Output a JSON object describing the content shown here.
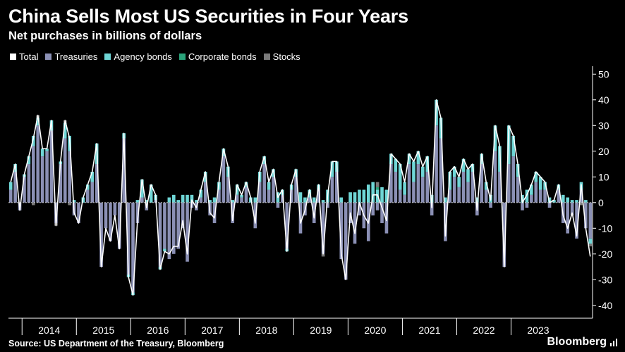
{
  "header": {
    "title": "China Sells Most US Securities in Four Years",
    "subtitle": "Net purchases in billions of dollars"
  },
  "footer": {
    "source": "Source: US Department of the Treasury, Bloomberg",
    "brand": "Bloomberg"
  },
  "colors": {
    "background": "#000000",
    "total": "#ffffff",
    "treasuries": "#8b90b5",
    "agency": "#6fd6d6",
    "corporate": "#2aa37a",
    "stocks": "#7a7a7a",
    "axis": "#ffffff"
  },
  "chart_data": {
    "type": "bar",
    "stacked": true,
    "title": "China Sells Most US Securities in Four Years",
    "subtitle": "Net purchases in billions of dollars",
    "ylim": [
      -45,
      52
    ],
    "yticks": [
      50,
      40,
      30,
      20,
      10,
      0,
      -10,
      -20,
      -30,
      -40
    ],
    "y_axis_side": "right",
    "x_start": "2013-10",
    "year_labels": [
      "2014",
      "2015",
      "2016",
      "2017",
      "2018",
      "2019",
      "2020",
      "2021",
      "2022",
      "2023"
    ],
    "legend": [
      "Total",
      "Treasuries",
      "Agency bonds",
      "Corporate bonds",
      "Stocks"
    ],
    "legend_placement": "top-left",
    "grid": false,
    "series": [
      {
        "name": "Treasuries",
        "values": [
          5,
          12,
          -3,
          10,
          15,
          22,
          30,
          18,
          20,
          28,
          -8,
          15,
          25,
          20,
          -5,
          -8,
          0,
          5,
          8,
          15,
          -25,
          -10,
          -15,
          -5,
          -18,
          25,
          -28,
          -35,
          -8,
          2,
          -3,
          0,
          1,
          -25,
          -18,
          -22,
          -20,
          -18,
          -10,
          -23,
          -2,
          -3,
          2,
          8,
          -5,
          -8,
          5,
          18,
          10,
          -8,
          3,
          2,
          6,
          0,
          -10,
          8,
          15,
          5,
          10,
          -2,
          3,
          -18,
          5,
          10,
          -12,
          -5,
          2,
          -8,
          5,
          -20,
          -2,
          10,
          12,
          -22,
          -30,
          -8,
          -16,
          -5,
          -10,
          -15,
          -5,
          -3,
          -8,
          -12,
          15,
          12,
          5,
          3,
          15,
          8,
          15,
          10,
          12,
          -5,
          30,
          25,
          -15,
          5,
          10,
          6,
          12,
          8,
          12,
          -5,
          15,
          5,
          -2,
          20,
          12,
          -25,
          15,
          18,
          10,
          -3,
          -2,
          3,
          8,
          5,
          5,
          -2,
          0,
          5,
          -8,
          -12,
          -5,
          -14,
          5,
          -10,
          -14
        ]
      },
      {
        "name": "Agency bonds",
        "values": [
          3,
          3,
          0,
          1,
          3,
          4,
          3,
          3,
          1,
          4,
          0,
          1,
          6,
          6,
          1,
          0,
          2,
          2,
          4,
          8,
          0,
          0,
          0,
          0,
          0,
          2,
          -1,
          -1,
          1,
          7,
          1,
          7,
          2,
          -1,
          -1,
          2,
          3,
          1,
          3,
          3,
          3,
          1,
          3,
          4,
          1,
          2,
          3,
          3,
          4,
          1,
          4,
          1,
          2,
          2,
          2,
          4,
          3,
          3,
          3,
          4,
          2,
          -1,
          2,
          3,
          4,
          2,
          3,
          2,
          2,
          1,
          5,
          6,
          4,
          2,
          0,
          4,
          4,
          5,
          5,
          7,
          8,
          5,
          6,
          5,
          4,
          5,
          10,
          5,
          4,
          8,
          5,
          4,
          6,
          3,
          10,
          8,
          2,
          7,
          4,
          4,
          5,
          5,
          3,
          2,
          4,
          3,
          3,
          10,
          10,
          0,
          15,
          8,
          5,
          3,
          5,
          4,
          4,
          5,
          3,
          2,
          1,
          2,
          3,
          2,
          1,
          1,
          3,
          1,
          -2
        ]
      },
      {
        "name": "Corporate bonds",
        "values": [
          0,
          0,
          0,
          0,
          0,
          0,
          0,
          0,
          0,
          0,
          0,
          0,
          0,
          0,
          0,
          0,
          0,
          0,
          0,
          0,
          0,
          0,
          0,
          0,
          0,
          0,
          0,
          0,
          0,
          0,
          0,
          0,
          0,
          0,
          0,
          0,
          0,
          0,
          0,
          0,
          0,
          0,
          0,
          0,
          0,
          0,
          0,
          0,
          0,
          0,
          0,
          0,
          0,
          0,
          0,
          0,
          0,
          0,
          0,
          0,
          0,
          0,
          0,
          0,
          0,
          0,
          0,
          0,
          0,
          0,
          0,
          0,
          0,
          0,
          0,
          0,
          0,
          0,
          0,
          0,
          0,
          1,
          0,
          0,
          0,
          0,
          0,
          0,
          0,
          0,
          0,
          0,
          0,
          0,
          0,
          0,
          0,
          0,
          0,
          0,
          0,
          0,
          0,
          0,
          0,
          0,
          0,
          0,
          0,
          0,
          0,
          0,
          0,
          0,
          0,
          0,
          0,
          0,
          0,
          0,
          0,
          0,
          0,
          0,
          0,
          0,
          0,
          0,
          0
        ]
      },
      {
        "name": "Stocks",
        "values": [
          0,
          0,
          0,
          0,
          0,
          -1,
          1,
          0,
          0,
          0,
          -1,
          0,
          1,
          -1,
          0,
          0,
          0,
          0,
          0,
          0,
          0,
          0,
          0,
          0,
          0,
          0,
          0,
          0,
          0,
          0,
          0,
          0,
          0,
          0,
          0,
          0,
          0,
          0,
          0,
          0,
          0,
          0,
          0,
          0,
          0,
          0,
          0,
          0,
          0,
          0,
          0,
          0,
          0,
          0,
          0,
          0,
          0,
          0,
          0,
          0,
          0,
          0,
          0,
          0,
          0,
          0,
          0,
          0,
          0,
          -1,
          0,
          0,
          0,
          0,
          0,
          0,
          0,
          0,
          0,
          0,
          0,
          2,
          0,
          0,
          0,
          0,
          0,
          0,
          0,
          0,
          0,
          0,
          0,
          0,
          0,
          0,
          0,
          0,
          0,
          0,
          0,
          0,
          0,
          0,
          0,
          0,
          0,
          0,
          0,
          0,
          0,
          0,
          0,
          0,
          0,
          0,
          0,
          0,
          0,
          0,
          0,
          0,
          0,
          0,
          0,
          0,
          -1,
          0,
          -1
        ]
      },
      {
        "name": "Total",
        "values": [
          8,
          15,
          -3,
          11,
          18,
          25,
          34,
          21,
          21,
          32,
          -9,
          16,
          32,
          25,
          -4,
          -8,
          2,
          7,
          12,
          23,
          -25,
          -10,
          -15,
          -5,
          -18,
          27,
          -29,
          -36,
          -7,
          9,
          -2,
          7,
          3,
          -26,
          -19,
          -20,
          -17,
          -17,
          -7,
          -20,
          1,
          -2,
          5,
          12,
          -4,
          -6,
          8,
          21,
          14,
          -7,
          7,
          3,
          8,
          2,
          -8,
          12,
          18,
          8,
          13,
          2,
          5,
          -19,
          7,
          13,
          -8,
          -3,
          5,
          -6,
          7,
          -20,
          3,
          16,
          16,
          -20,
          -30,
          -4,
          -12,
          0,
          -5,
          -8,
          3,
          3,
          -2,
          -7,
          19,
          17,
          15,
          8,
          19,
          16,
          20,
          14,
          18,
          -2,
          40,
          33,
          -13,
          12,
          14,
          10,
          17,
          13,
          15,
          -3,
          19,
          8,
          1,
          30,
          22,
          -25,
          30,
          26,
          15,
          0,
          3,
          7,
          12,
          10,
          8,
          0,
          1,
          7,
          -5,
          -10,
          -4,
          -13,
          7,
          -10,
          -21
        ]
      }
    ]
  }
}
